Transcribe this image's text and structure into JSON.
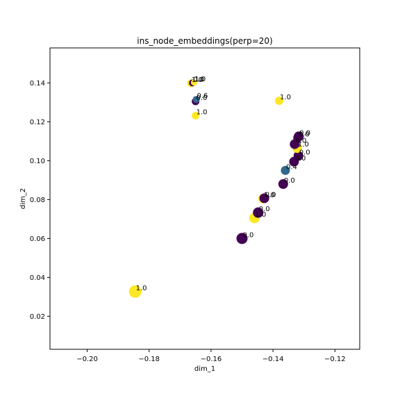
{
  "chart_data": {
    "type": "scatter",
    "title": "ins_node_embeddings(perp=20)",
    "xlabel": "dim_1",
    "ylabel": "dim_2",
    "xlim": [
      -0.212,
      -0.112
    ],
    "ylim": [
      0.003,
      0.158
    ],
    "xticks": [
      -0.2,
      -0.18,
      -0.16,
      -0.14,
      -0.12
    ],
    "xtick_labels": [
      "−0.20",
      "−0.18",
      "−0.16",
      "−0.14",
      "−0.12"
    ],
    "yticks": [
      0.02,
      0.04,
      0.06,
      0.08,
      0.1,
      0.12,
      0.14
    ],
    "ytick_labels": [
      "0.02",
      "0.04",
      "0.06",
      "0.08",
      "0.10",
      "0.12",
      "0.14"
    ],
    "grid": false,
    "legend": false,
    "colors": {
      "0.0": "#440154",
      "0.4": "#31688e",
      "0.6": "#31688e",
      "1.0": "#fde725"
    },
    "points": [
      {
        "x": -0.1845,
        "y": 0.0327,
        "value": 1.0,
        "label": "1.0",
        "size": 18
      },
      {
        "x": -0.15,
        "y": 0.06,
        "value": 0.0,
        "label": "0.0",
        "size": 16
      },
      {
        "x": -0.146,
        "y": 0.0705,
        "value": 1.0,
        "label": "1.0",
        "size": 15
      },
      {
        "x": -0.1448,
        "y": 0.0733,
        "value": 0.0,
        "label": "0.0",
        "size": 15
      },
      {
        "x": -0.1432,
        "y": 0.0805,
        "value": 1.0,
        "label": "1.0",
        "size": 14
      },
      {
        "x": -0.1428,
        "y": 0.0807,
        "value": 0.0,
        "label": "0.0",
        "size": 14
      },
      {
        "x": -0.1367,
        "y": 0.088,
        "value": 0.0,
        "label": "0.0",
        "size": 14
      },
      {
        "x": -0.136,
        "y": 0.095,
        "value": 0.4,
        "label": "0.4",
        "size": 13
      },
      {
        "x": -0.1332,
        "y": 0.0995,
        "value": 0.0,
        "label": "0.0",
        "size": 14
      },
      {
        "x": -0.1318,
        "y": 0.1025,
        "value": 0.0,
        "label": "0.0",
        "size": 14
      },
      {
        "x": -0.1322,
        "y": 0.1065,
        "value": 1.0,
        "label": "1.0",
        "size": 14
      },
      {
        "x": -0.133,
        "y": 0.1085,
        "value": 0.0,
        "label": "0.0",
        "size": 14
      },
      {
        "x": -0.1317,
        "y": 0.1125,
        "value": 0.0,
        "label": "0.0",
        "size": 14
      },
      {
        "x": -0.132,
        "y": 0.1118,
        "value": 0.0,
        "label": "0.0",
        "size": 13
      },
      {
        "x": -0.138,
        "y": 0.1308,
        "value": 1.0,
        "label": "1.0",
        "size": 12
      },
      {
        "x": -0.165,
        "y": 0.1232,
        "value": 1.0,
        "label": "1.0",
        "size": 11
      },
      {
        "x": -0.165,
        "y": 0.1305,
        "value": 0.0,
        "label": "0.0",
        "size": 11
      },
      {
        "x": -0.1648,
        "y": 0.1315,
        "value": 0.6,
        "label": "0.6",
        "size": 10
      },
      {
        "x": -0.1665,
        "y": 0.1398,
        "value": 1.0,
        "label": "1.0",
        "size": 11
      },
      {
        "x": -0.166,
        "y": 0.14,
        "value": 0.0,
        "label": "0.0",
        "size": 10
      },
      {
        "x": -0.1655,
        "y": 0.1402,
        "value": 1.0,
        "label": "1.0",
        "size": 9
      }
    ]
  }
}
